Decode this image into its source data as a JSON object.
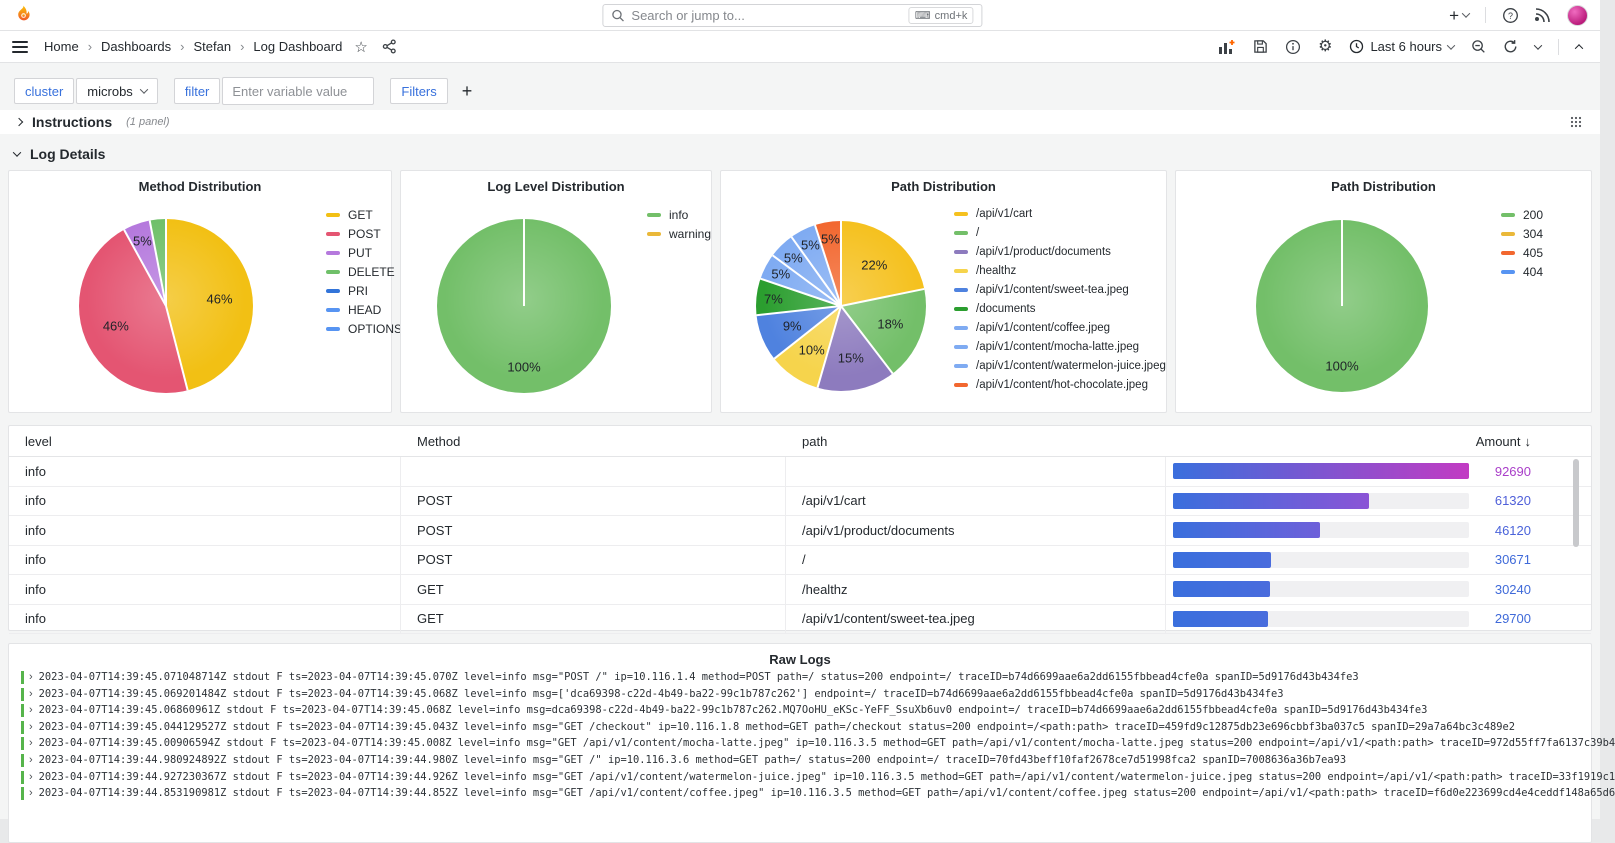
{
  "topbar": {
    "search_placeholder": "Search or jump to...",
    "shortcut": "cmd+k",
    "add_label": "+"
  },
  "breadcrumb": {
    "separator": "›",
    "items": [
      "Home",
      "Dashboards",
      "Stefan",
      "Log Dashboard"
    ]
  },
  "toolbar": {
    "time_label": "Last 6 hours"
  },
  "variable_bar": {
    "cluster_label": "cluster",
    "cluster_value": "microbs",
    "filter_label": "filter",
    "filter_placeholder": "Enter variable value",
    "filters_button": "Filters",
    "add_label": "+"
  },
  "rows": {
    "instructions_title": "Instructions",
    "instructions_meta": "(1 panel)",
    "log_details_title": "Log Details"
  },
  "chart_data": [
    {
      "type": "pie",
      "title": "Method Distribution",
      "legend_position": "right",
      "series": [
        {
          "name": "GET",
          "value": 46,
          "color": "#f2c014",
          "pct_label": "46%"
        },
        {
          "name": "POST",
          "value": 46,
          "color": "#e45572",
          "pct_label": "46%"
        },
        {
          "name": "PUT",
          "value": 5,
          "color": "#b579dd",
          "pct_label": "5%"
        },
        {
          "name": "DELETE",
          "value": 3,
          "color": "#6fc069",
          "pct_label": null
        },
        {
          "name": "PRI",
          "value": 0,
          "color": "#3274d9",
          "pct_label": null
        },
        {
          "name": "HEAD",
          "value": 0,
          "color": "#5794f2",
          "pct_label": null
        },
        {
          "name": "OPTIONS",
          "value": 0,
          "color": "#5794f2",
          "pct_label": null
        }
      ]
    },
    {
      "type": "pie",
      "title": "Log Level Distribution",
      "legend_position": "right",
      "series": [
        {
          "name": "info",
          "value": 100,
          "color": "#73bf69",
          "pct_label": "100%"
        },
        {
          "name": "warning",
          "value": 0,
          "color": "#eab839",
          "pct_label": null
        }
      ]
    },
    {
      "type": "pie",
      "title": "Path Distribution",
      "legend_position": "right",
      "series": [
        {
          "name": "/api/v1/cart",
          "value": 22,
          "color": "#f5c11f",
          "pct_label": "22%"
        },
        {
          "name": "/",
          "value": 18,
          "color": "#73bf69",
          "pct_label": "18%"
        },
        {
          "name": "/api/v1/product/documents",
          "value": 15,
          "color": "#8d7bbe",
          "pct_label": "15%"
        },
        {
          "name": "/healthz",
          "value": 10,
          "color": "#f6d44c",
          "pct_label": "10%"
        },
        {
          "name": "/api/v1/content/sweet-tea.jpeg",
          "value": 9,
          "color": "#4f82df",
          "pct_label": "9%"
        },
        {
          "name": "/documents",
          "value": 7,
          "color": "#2b9e2f",
          "pct_label": "7%"
        },
        {
          "name": "/api/v1/content/coffee.jpeg",
          "value": 5,
          "color": "#7fabf2",
          "pct_label": "5%"
        },
        {
          "name": "/api/v1/content/mocha-latte.jpeg",
          "value": 5,
          "color": "#7fabf2",
          "pct_label": "5%"
        },
        {
          "name": "/api/v1/content/watermelon-juice.jpeg",
          "value": 5,
          "color": "#7fabf2",
          "pct_label": "5%"
        },
        {
          "name": "/api/v1/content/hot-chocolate.jpeg",
          "value": 5,
          "color": "#f2672f",
          "pct_label": "5%"
        }
      ]
    },
    {
      "type": "pie",
      "title": "Path Distribution",
      "legend_position": "right",
      "series": [
        {
          "name": "200",
          "value": 100,
          "color": "#73bf69",
          "pct_label": "100%"
        },
        {
          "name": "304",
          "value": 0,
          "color": "#eab839",
          "pct_label": null
        },
        {
          "name": "405",
          "value": 0,
          "color": "#f2672f",
          "pct_label": null
        },
        {
          "name": "404",
          "value": 0,
          "color": "#5794f2",
          "pct_label": null
        }
      ]
    }
  ],
  "table": {
    "columns": [
      "level",
      "Method",
      "path",
      "Amount"
    ],
    "sort_icon": "↓",
    "max": 92690,
    "rows": [
      {
        "level": "info",
        "method": "",
        "path": "",
        "amount": "92690",
        "value": 92690,
        "bar_end": "#c23bc3",
        "text_color": "#a93ec9"
      },
      {
        "level": "info",
        "method": "POST",
        "path": "/api/v1/cart",
        "amount": "61320",
        "value": 61320,
        "bar_end": "#8b54d6",
        "text_color": "#4f5fd9"
      },
      {
        "level": "info",
        "method": "POST",
        "path": "/api/v1/product/documents",
        "amount": "46120",
        "value": 46120,
        "bar_end": "#6e60da",
        "text_color": "#4a63da"
      },
      {
        "level": "info",
        "method": "POST",
        "path": "/",
        "amount": "30671",
        "value": 30671,
        "bar_end": "#4a6cdd",
        "text_color": "#3f6ad9"
      },
      {
        "level": "info",
        "method": "GET",
        "path": "/healthz",
        "amount": "30240",
        "value": 30240,
        "bar_end": "#4a6cdd",
        "text_color": "#3f6ad9"
      },
      {
        "level": "info",
        "method": "GET",
        "path": "/api/v1/content/sweet-tea.jpeg",
        "amount": "29700",
        "value": 29700,
        "bar_end": "#496ddd",
        "text_color": "#3f6ad9"
      }
    ]
  },
  "raw_logs": {
    "title": "Raw Logs",
    "expand_icon": "›",
    "lines": [
      "2023-04-07T14:39:45.071048714Z stdout F ts=2023-04-07T14:39:45.070Z level=info msg=\"POST /\" ip=10.116.1.4 method=POST path=/ status=200 endpoint=/ traceID=b74d6699aae6a2dd6155fbbead4cfe0a spanID=5d9176d43b434fe3",
      "2023-04-07T14:39:45.069201484Z stdout F ts=2023-04-07T14:39:45.068Z level=info msg=['dca69398-c22d-4b49-ba22-99c1b787c262'] endpoint=/ traceID=b74d6699aae6a2dd6155fbbead4cfe0a spanID=5d9176d43b434fe3",
      "2023-04-07T14:39:45.06860961Z stdout F ts=2023-04-07T14:39:45.068Z level=info msg=dca69398-c22d-4b49-ba22-99c1b787c262.MQ7OoHU_eKSc-YeFF_SsuXb6uv0 endpoint=/ traceID=b74d6699aae6a2dd6155fbbead4cfe0a spanID=5d9176d43b434fe3",
      "2023-04-07T14:39:45.044129527Z stdout F ts=2023-04-07T14:39:45.043Z level=info msg=\"GET /checkout\" ip=10.116.1.8 method=GET path=/checkout status=200 endpoint=/<path:path> traceID=459fd9c12875db23e696cbbf3ba037c5 spanID=29a7a64bc3c489e2",
      "2023-04-07T14:39:45.00906594Z stdout F ts=2023-04-07T14:39:45.008Z level=info msg=\"GET /api/v1/content/mocha-latte.jpeg\" ip=10.116.3.5 method=GET path=/api/v1/content/mocha-latte.jpeg status=200 endpoint=/api/v1/<path:path> traceID=972d55ff7fa6137c39b4",
      "2023-04-07T14:39:44.980924892Z stdout F ts=2023-04-07T14:39:44.980Z level=info msg=\"GET /\" ip=10.116.3.6 method=GET path=/ status=200 endpoint=/ traceID=70fd43beff10faf2678ce7d51998fca2 spanID=7008636a36b7ea93",
      "2023-04-07T14:39:44.927230367Z stdout F ts=2023-04-07T14:39:44.926Z level=info msg=\"GET /api/v1/content/watermelon-juice.jpeg\" ip=10.116.3.5 method=GET path=/api/v1/content/watermelon-juice.jpeg status=200 endpoint=/api/v1/<path:path> traceID=33f1919c1",
      "2023-04-07T14:39:44.853190981Z stdout F ts=2023-04-07T14:39:44.852Z level=info msg=\"GET /api/v1/content/coffee.jpeg\" ip=10.116.3.5 method=GET path=/api/v1/content/coffee.jpeg status=200 endpoint=/api/v1/<path:path> traceID=f6d0e223699cd4e4ceddf148a65d6"
    ]
  },
  "colors": {
    "accent_blue": "#3871dc",
    "bar_start": "#3a6fdd",
    "log_row_green": "#56b44b",
    "background": "#f4f5f5"
  }
}
